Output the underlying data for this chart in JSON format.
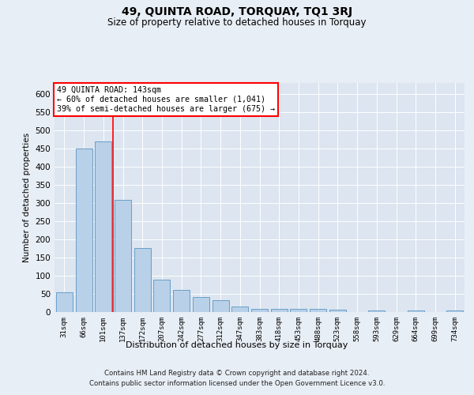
{
  "title": "49, QUINTA ROAD, TORQUAY, TQ1 3RJ",
  "subtitle": "Size of property relative to detached houses in Torquay",
  "xlabel": "Distribution of detached houses by size in Torquay",
  "ylabel": "Number of detached properties",
  "categories": [
    "31sqm",
    "66sqm",
    "101sqm",
    "137sqm",
    "172sqm",
    "207sqm",
    "242sqm",
    "277sqm",
    "312sqm",
    "347sqm",
    "383sqm",
    "418sqm",
    "453sqm",
    "488sqm",
    "523sqm",
    "558sqm",
    "593sqm",
    "629sqm",
    "664sqm",
    "699sqm",
    "734sqm"
  ],
  "values": [
    55,
    450,
    470,
    308,
    175,
    88,
    60,
    42,
    32,
    15,
    9,
    9,
    9,
    8,
    6,
    0,
    5,
    0,
    5,
    0,
    5
  ],
  "bar_color": "#b8d0e8",
  "bar_edge_color": "#6a9fc8",
  "red_line_x": 3.0,
  "annotation_line1": "49 QUINTA ROAD: 143sqm",
  "annotation_line2": "← 60% of detached houses are smaller (1,041)",
  "annotation_line3": "39% of semi-detached houses are larger (675) →",
  "ylim": [
    0,
    630
  ],
  "yticks": [
    0,
    50,
    100,
    150,
    200,
    250,
    300,
    350,
    400,
    450,
    500,
    550,
    600
  ],
  "footer1": "Contains HM Land Registry data © Crown copyright and database right 2024.",
  "footer2": "Contains public sector information licensed under the Open Government Licence v3.0.",
  "bg_color": "#e8eef5",
  "plot_bg_color": "#dce5f0"
}
